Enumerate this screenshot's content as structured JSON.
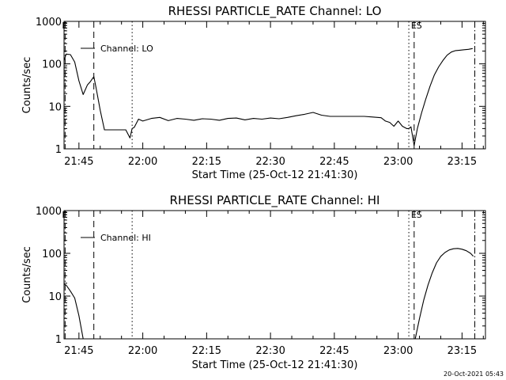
{
  "chart_data": [
    {
      "type": "line",
      "title": "RHESSI PARTICLE_RATE Channel: LO",
      "xlabel": "Start Time (25-Oct-12 21:41:30)",
      "ylabel": "Counts/sec",
      "yscale": "log",
      "ylim": [
        1,
        1000
      ],
      "xlim": [
        "21:41:30",
        "23:20:30"
      ],
      "x_ticks": [
        "21:45",
        "22:00",
        "22:15",
        "22:30",
        "22:45",
        "23:00",
        "23:15"
      ],
      "y_ticks": [
        "1",
        "10",
        "100",
        "1000"
      ],
      "legend": {
        "label": "Channel: LO",
        "placement": "top-left"
      },
      "markers": [
        {
          "label": "E",
          "time": "21:41:45",
          "style": "dash-dot"
        },
        {
          "label": "",
          "time": "21:48:30",
          "style": "dashed"
        },
        {
          "label": "",
          "time": "21:57:30",
          "style": "dotted"
        },
        {
          "label": "",
          "time": "23:02:30",
          "style": "dotted"
        },
        {
          "label": "ES",
          "time": "23:03:45",
          "style": "dashed"
        },
        {
          "label": "",
          "time": "23:18:00",
          "style": "dash-dot"
        }
      ],
      "series": [
        {
          "name": "Channel: LO",
          "segments": [
            {
              "x": [
                "21:41:30",
                "21:42:00",
                "21:43:00",
                "21:44:00",
                "21:45:00",
                "21:46:00",
                "21:47:00",
                "21:47:40",
                "21:48:30",
                "21:49:00",
                "21:50:00",
                "21:51:00",
                "21:52:00",
                "21:53:00",
                "21:54:00",
                "21:55:00",
                "21:56:00",
                "21:57:00",
                "21:57:30",
                "21:58:00",
                "21:59:00",
                "22:00:00",
                "22:02:00",
                "22:04:00",
                "22:06:00",
                "22:08:00",
                "22:10:00",
                "22:12:00",
                "22:14:00",
                "22:16:00",
                "22:18:00",
                "22:20:00",
                "22:22:00",
                "22:24:00",
                "22:26:00",
                "22:28:00",
                "22:30:00",
                "22:32:00",
                "22:34:00",
                "22:36:00",
                "22:38:00",
                "22:40:00",
                "22:42:00",
                "22:44:00",
                "22:46:00",
                "22:48:00",
                "22:50:00",
                "22:52:00",
                "22:54:00",
                "22:56:00",
                "22:57:00",
                "22:58:00",
                "22:59:00",
                "23:00:00",
                "23:01:00",
                "23:02:00",
                "23:02:30",
                "23:03:00",
                "23:03:45"
              ],
              "y": [
                120,
                170,
                165,
                110,
                40,
                19,
                32,
                38,
                50,
                28,
                8,
                2.8,
                2.8,
                2.8,
                2.8,
                2.8,
                2.8,
                1.8,
                3,
                3.2,
                5,
                4.5,
                5.2,
                5.5,
                4.6,
                5.2,
                5,
                4.7,
                5.1,
                5,
                4.7,
                5.2,
                5.3,
                4.8,
                5.2,
                5,
                5.3,
                5.1,
                5.5,
                6,
                6.5,
                7.2,
                6.2,
                5.8,
                5.8,
                5.8,
                5.8,
                5.8,
                5.6,
                5.4,
                4.5,
                4.2,
                3.4,
                4.5,
                3.4,
                3,
                3,
                3.3,
                1.2
              ]
            },
            {
              "x": [
                "23:03:45",
                "23:04:30",
                "23:05:30",
                "23:06:30",
                "23:07:30",
                "23:08:30",
                "23:09:30",
                "23:10:30",
                "23:11:30",
                "23:12:30",
                "23:13:30",
                "23:14:30",
                "23:15:30",
                "23:16:30",
                "23:17:30"
              ],
              "y": [
                1.2,
                3,
                7,
                15,
                30,
                55,
                85,
                120,
                160,
                190,
                205,
                210,
                215,
                220,
                230
              ]
            }
          ]
        }
      ]
    },
    {
      "type": "line",
      "title": "RHESSI PARTICLE_RATE Channel: HI",
      "xlabel": "Start Time (25-Oct-12 21:41:30)",
      "ylabel": "Counts/sec",
      "yscale": "log",
      "ylim": [
        1,
        1000
      ],
      "xlim": [
        "21:41:30",
        "23:20:30"
      ],
      "x_ticks": [
        "21:45",
        "22:00",
        "22:15",
        "22:30",
        "22:45",
        "23:00",
        "23:15"
      ],
      "y_ticks": [
        "1",
        "10",
        "100",
        "1000"
      ],
      "legend": {
        "label": "Channel: HI",
        "placement": "top-left"
      },
      "markers": [
        {
          "label": "E",
          "time": "21:41:45",
          "style": "dash-dot"
        },
        {
          "label": "",
          "time": "21:48:30",
          "style": "dashed"
        },
        {
          "label": "",
          "time": "21:57:30",
          "style": "dotted"
        },
        {
          "label": "",
          "time": "23:02:30",
          "style": "dotted"
        },
        {
          "label": "ES",
          "time": "23:03:45",
          "style": "dashed"
        },
        {
          "label": "",
          "time": "23:18:00",
          "style": "dash-dot"
        }
      ],
      "series": [
        {
          "name": "Channel: HI",
          "segments": [
            {
              "x": [
                "21:41:30",
                "21:42:00",
                "21:43:00",
                "21:44:00",
                "21:45:00",
                "21:46:00"
              ],
              "y": [
                19,
                18,
                13,
                9,
                3.5,
                1
              ]
            },
            {
              "x": [
                "23:04:00",
                "23:05:00",
                "23:06:00",
                "23:07:00",
                "23:08:00",
                "23:09:00",
                "23:10:00",
                "23:11:00",
                "23:12:00",
                "23:13:00",
                "23:14:00",
                "23:15:00",
                "23:16:00",
                "23:17:00",
                "23:17:40"
              ],
              "y": [
                1,
                3,
                8,
                18,
                35,
                60,
                85,
                105,
                120,
                128,
                130,
                125,
                115,
                100,
                85
              ]
            }
          ]
        }
      ]
    }
  ],
  "footer": {
    "timestamp": "20-Oct-2021 05:43"
  }
}
